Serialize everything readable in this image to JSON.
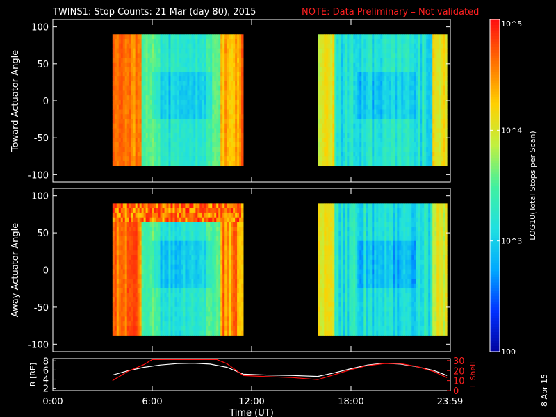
{
  "header": {
    "title": "TWINS1: Stop Counts: 21 Mar (day  80), 2015",
    "note": "NOTE: Data Preliminary – Not validated"
  },
  "stamp": "8 Apr 15",
  "colorbar": {
    "label": "LOG10(Total Stops per Scan)",
    "ticks": [
      "10^5",
      "10^4",
      "10^3",
      "100"
    ],
    "range_log10": [
      2,
      5
    ],
    "colormap": [
      "#00009c",
      "#0030ff",
      "#00a8ff",
      "#20e0e0",
      "#40f0a0",
      "#c0f040",
      "#ffd000",
      "#ff7000",
      "#ff1010"
    ]
  },
  "xaxis": {
    "label": "Time (UT)",
    "ticks": [
      "0:00",
      "6:00",
      "12:00",
      "18:00",
      "23:59"
    ],
    "tick_hours": [
      0,
      6,
      12,
      18,
      23.98
    ],
    "range_hours": [
      0,
      24
    ]
  },
  "chart_data": [
    {
      "type": "heatmap",
      "ylabel": "Toward Actuator Angle",
      "ylim": [
        -110,
        110
      ],
      "yticks": [
        100,
        50,
        0,
        -50,
        -100
      ],
      "data_range_deg": [
        -88,
        90
      ],
      "coverage_hours": [
        [
          3.6,
          11.5
        ],
        [
          16.0,
          23.8
        ]
      ],
      "value_units": "log10 counts"
    },
    {
      "type": "heatmap",
      "ylabel": "Away Actuator Angle",
      "ylim": [
        -110,
        110
      ],
      "yticks": [
        100,
        50,
        0,
        -50,
        -100
      ],
      "data_range_deg": [
        -88,
        90
      ],
      "coverage_hours": [
        [
          3.6,
          11.5
        ],
        [
          16.0,
          23.8
        ]
      ],
      "value_units": "log10 counts"
    },
    {
      "type": "line",
      "ylabel_left": "R [RE]",
      "ylabel_right": "L Shell",
      "yticks_left": [
        8,
        6,
        4,
        2
      ],
      "yticks_right": [
        30,
        20,
        10,
        0
      ],
      "ylim_left": [
        1.5,
        8.5
      ],
      "ylim_right": [
        0,
        32
      ],
      "series": [
        {
          "name": "R [RE]",
          "color": "#ffffff",
          "x": [
            3.6,
            4.5,
            5.5,
            6.5,
            7.5,
            8.5,
            9.5,
            10.5,
            11.5,
            13,
            14.5,
            16,
            17,
            18,
            19,
            20,
            21,
            22,
            23,
            23.8
          ],
          "y": [
            4.9,
            5.8,
            6.6,
            7.1,
            7.4,
            7.5,
            7.3,
            6.6,
            5.1,
            4.9,
            4.8,
            4.6,
            5.4,
            6.3,
            7.1,
            7.5,
            7.3,
            6.7,
            5.9,
            4.8
          ]
        },
        {
          "name": "L Shell",
          "color": "#ff1010",
          "x": [
            3.6,
            4.5,
            5.5,
            6.0,
            9.9,
            10.5,
            11.5,
            13,
            14.5,
            16,
            17,
            18,
            19,
            20,
            21,
            22,
            23,
            23.8
          ],
          "y": [
            10,
            19,
            26,
            31,
            31,
            27,
            15,
            14,
            13,
            11,
            16,
            21,
            25,
            27,
            27,
            24,
            19,
            13
          ]
        }
      ]
    }
  ]
}
